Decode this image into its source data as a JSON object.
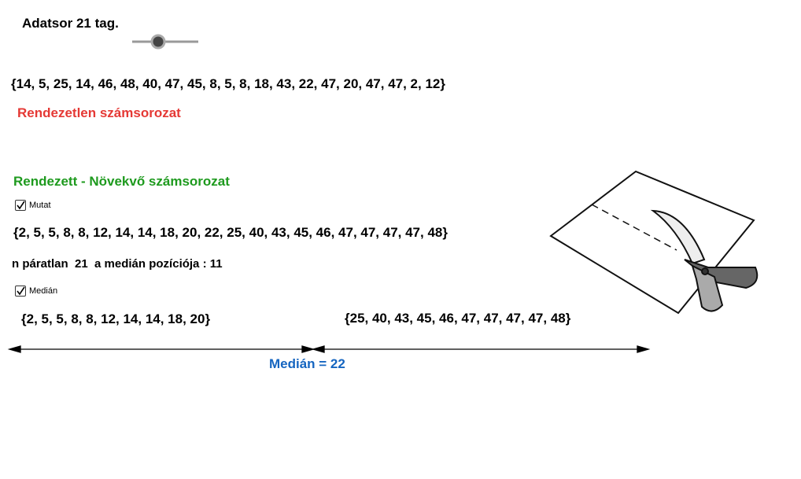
{
  "header": {
    "title": "Adatsor 21 tag."
  },
  "unsorted": {
    "list": "{14, 5, 25, 14, 46, 48, 40, 47, 45, 8, 5, 8, 18, 43, 22, 47, 20, 47, 47, 2, 12}",
    "label": "Rendezetlen számsorozat"
  },
  "sorted": {
    "label": "Rendezett - Növekvő számsorozat",
    "checkbox": "Mutat",
    "list": "{2, 5, 5, 8, 8, 12, 14, 14, 18, 20, 22, 25, 40, 43, 45, 46, 47, 47, 47, 47, 48}"
  },
  "position": {
    "text": "n páratlan  21  a medián pozíciója : 11"
  },
  "median": {
    "checkbox": "Medián",
    "lower": "{2, 5, 5, 8, 8, 12, 14, 14, 18, 20}",
    "upper": "{25, 40, 43, 45, 46, 47, 47, 47, 47, 48}",
    "result": "Medián = 22"
  }
}
